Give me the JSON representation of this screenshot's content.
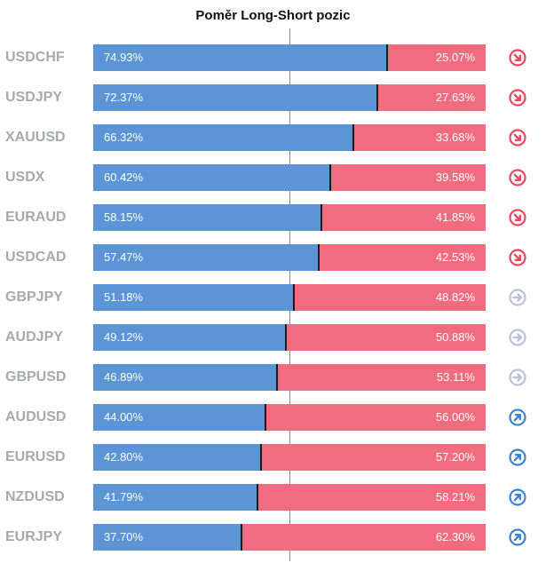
{
  "chart_data": {
    "type": "bar",
    "stacked": true,
    "orientation": "horizontal",
    "title": "Poměr Long-Short pozic",
    "categories": [
      "USDCHF",
      "USDJPY",
      "XAUUSD",
      "USDX",
      "EURAUD",
      "USDCAD",
      "GBPJPY",
      "AUDJPY",
      "GBPUSD",
      "AUDUSD",
      "EURUSD",
      "NZDUSD",
      "EURJPY"
    ],
    "series": [
      {
        "values": [
          74.93,
          72.37,
          66.32,
          60.42,
          58.15,
          57.47,
          51.18,
          49.12,
          46.89,
          44.0,
          42.8,
          41.79,
          37.7
        ]
      },
      {
        "values": [
          25.07,
          27.63,
          33.68,
          39.58,
          41.85,
          42.53,
          48.82,
          50.88,
          53.11,
          56.0,
          57.2,
          58.21,
          62.3
        ]
      }
    ],
    "labels_long": [
      "74.93%",
      "72.37%",
      "66.32%",
      "60.42%",
      "58.15%",
      "57.47%",
      "51.18%",
      "49.12%",
      "46.89%",
      "44.00%",
      "42.80%",
      "41.79%",
      "37.70%"
    ],
    "labels_short": [
      "25.07%",
      "27.63%",
      "33.68%",
      "39.58%",
      "41.85%",
      "42.53%",
      "48.82%",
      "50.88%",
      "53.11%",
      "56.00%",
      "57.20%",
      "58.21%",
      "62.30%"
    ],
    "signal_icons": [
      "arrow-down-right-icon",
      "arrow-down-right-icon",
      "arrow-down-right-icon",
      "arrow-down-right-icon",
      "arrow-down-right-icon",
      "arrow-down-right-icon",
      "arrow-right-icon",
      "arrow-right-icon",
      "arrow-right-icon",
      "arrow-up-right-icon",
      "arrow-up-right-icon",
      "arrow-up-right-icon",
      "arrow-up-right-icon"
    ],
    "xlim": [
      0,
      100
    ],
    "colors": {
      "long": "#5b95d6",
      "short": "#f06c7e",
      "sell": "#e8485c",
      "neutral": "#b9c3d6",
      "buy": "#3f82cf",
      "symbol_text": "#a7a9ad"
    }
  }
}
